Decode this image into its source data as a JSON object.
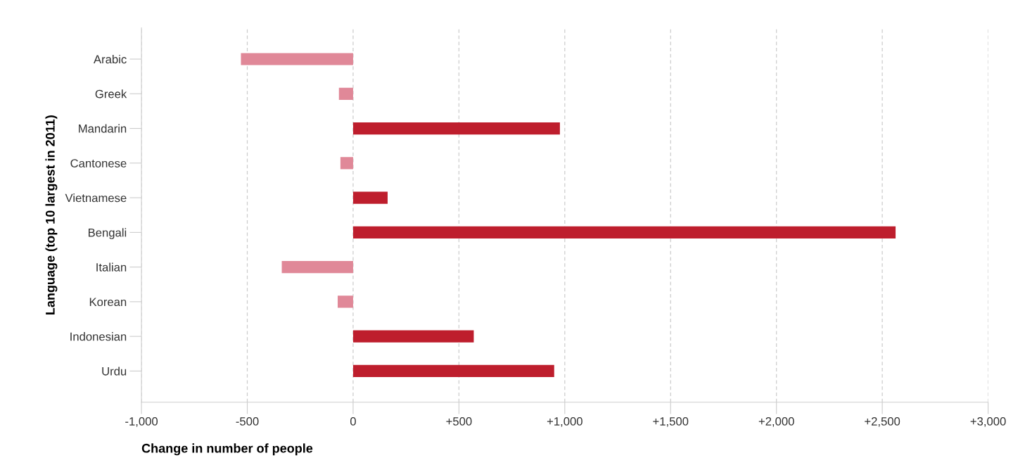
{
  "chart_data": {
    "type": "bar",
    "orientation": "horizontal",
    "xlabel": "Change in number of people",
    "ylabel": "Language (top 10 largest in 2011)",
    "categories": [
      "Arabic",
      "Greek",
      "Mandarin",
      "Cantonese",
      "Vietnamese",
      "Bengali",
      "Italian",
      "Korean",
      "Indonesian",
      "Urdu"
    ],
    "values": [
      -530,
      -67,
      977,
      -60,
      163,
      2563,
      -337,
      -73,
      570,
      950
    ],
    "colors": [
      "#e08898",
      "#e08898",
      "#be1e2d",
      "#e08898",
      "#be1e2d",
      "#be1e2d",
      "#e08898",
      "#e08898",
      "#be1e2d",
      "#be1e2d"
    ],
    "xlim": [
      -1000,
      3000
    ],
    "xticks": [
      {
        "value": -1000,
        "label": "-1,000"
      },
      -500,
      0,
      {
        "value": 500,
        "label": "+500"
      },
      {
        "value": 1000,
        "label": "+1,000"
      },
      {
        "value": 1500,
        "label": "+1,500"
      },
      {
        "value": 2000,
        "label": "+2,000"
      },
      {
        "value": 2500,
        "label": "+2,500"
      },
      {
        "value": 3000,
        "label": "+3,000"
      }
    ],
    "grid": "x",
    "legend": false
  }
}
